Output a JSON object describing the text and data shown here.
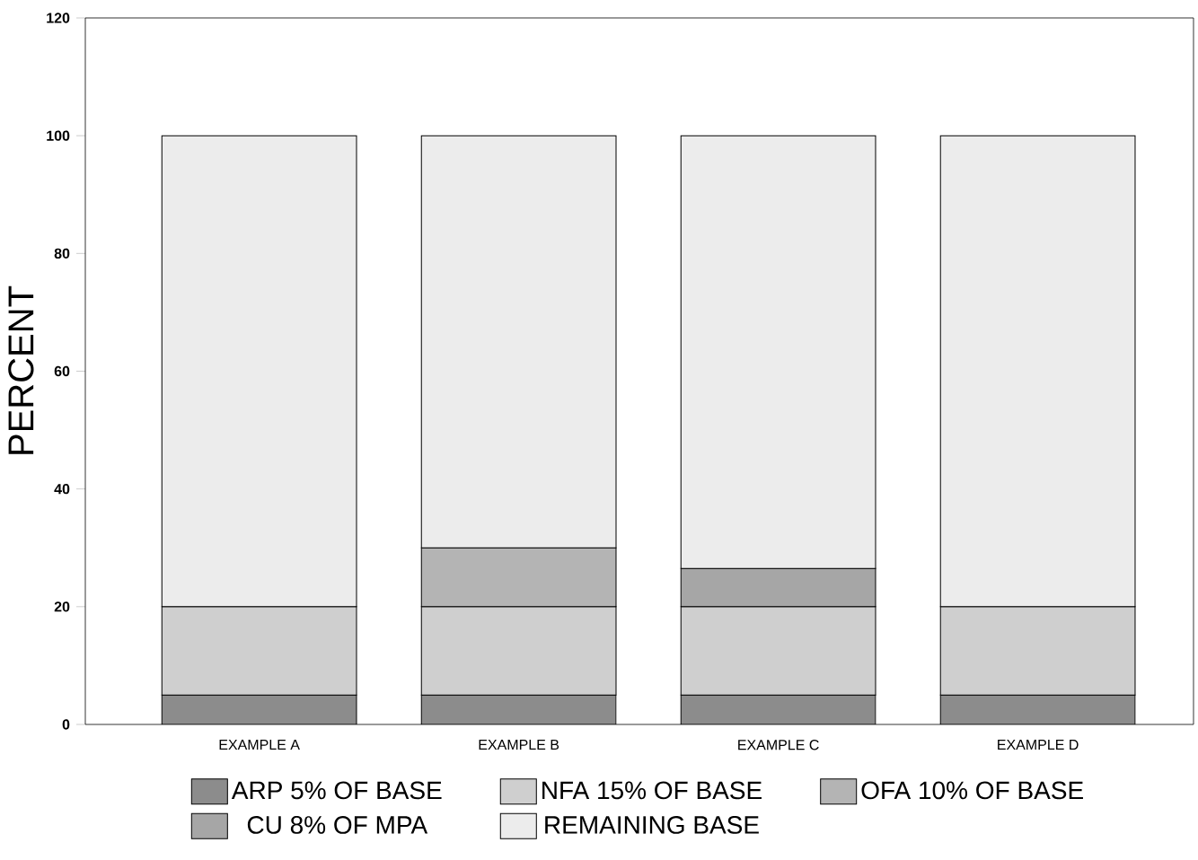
{
  "chart_data": {
    "type": "bar",
    "stacked": true,
    "ylabel": "PERCENT",
    "categories": [
      "EXAMPLE A",
      "EXAMPLE B",
      "EXAMPLE C",
      "EXAMPLE D"
    ],
    "series": [
      {
        "name": "ARP 5% OF BASE",
        "color": "#8c8c8c",
        "values": [
          5,
          5,
          5,
          5
        ]
      },
      {
        "name": "NFA 15% OF BASE",
        "color": "#cfcfcf",
        "values": [
          15,
          15,
          15,
          15
        ]
      },
      {
        "name": "OFA 10% OF BASE",
        "color": "#b4b4b4",
        "values": [
          null,
          10,
          null,
          null
        ]
      },
      {
        "name": "CU 8% OF MPA",
        "color": "#a6a6a6",
        "values": [
          null,
          null,
          6.5,
          null
        ]
      },
      {
        "name": "REMAINING BASE",
        "color": "#ececec",
        "values": [
          80,
          70,
          73.5,
          80
        ]
      }
    ],
    "ylim": [
      0,
      120
    ],
    "yticks": [
      0,
      20,
      40,
      60,
      80,
      100,
      120
    ],
    "grid": false,
    "legend": "bottom"
  }
}
